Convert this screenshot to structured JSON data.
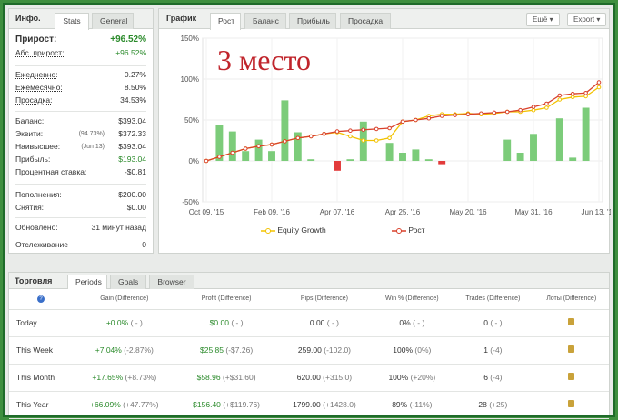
{
  "info": {
    "title": "Инфо.",
    "tabs": [
      "Stats",
      "General"
    ],
    "rows": {
      "gain_label": "Прирост:",
      "gain_value": "+96.52%",
      "abs_gain_label": "Абс. прирост:",
      "abs_gain_value": "+96.52%",
      "daily_label": "Ежедневно:",
      "daily_value": "0.27%",
      "monthly_label": "Ежемесячно:",
      "monthly_value": "8.50%",
      "drawdown_label": "Просадка:",
      "drawdown_value": "34.53%",
      "balance_label": "Баланс:",
      "balance_value": "$393.04",
      "equity_label": "Эквити:",
      "equity_note": "(94.73%)",
      "equity_value": "$372.33",
      "highest_label": "Наивысшее:",
      "highest_note": "(Jun 13)",
      "highest_value": "$393.04",
      "profit_label": "Прибыль:",
      "profit_value": "$193.04",
      "interest_label": "Процентная ставка:",
      "interest_value": "-$0.81",
      "deposits_label": "Пополнения:",
      "deposits_value": "$200.00",
      "withdrawals_label": "Снятия:",
      "withdrawals_value": "$0.00",
      "updated_label": "Обновлено:",
      "updated_value": "31 минут назад",
      "tracking_label": "Отслеживание",
      "tracking_value": "0"
    }
  },
  "chart_panel": {
    "title": "График",
    "tabs": [
      "Рост",
      "Баланс",
      "Прибыль",
      "Просадка"
    ],
    "buttons": [
      "Ещё",
      "Export"
    ],
    "overlay_text": "3 место",
    "legend": [
      "Equity Growth",
      "Рост"
    ]
  },
  "chart_data": {
    "type": "line",
    "title": "",
    "x_tick_labels": [
      "Oct 09, '15",
      "Feb 09, '16",
      "Apr 07, '16",
      "Apr 25, '16",
      "May 20, '16",
      "May 31, '16",
      "Jun 13, '16"
    ],
    "y_tick_labels": [
      "150%",
      "100%",
      "50%",
      "0%",
      "-50%"
    ],
    "ylim": [
      -50,
      150
    ],
    "series": [
      {
        "name": "Equity Growth",
        "color": "#f2c200",
        "values": [
          0,
          5,
          10,
          15,
          18,
          20,
          24,
          28,
          30,
          33,
          35,
          30,
          25,
          25,
          28,
          48,
          50,
          55,
          57,
          57,
          58,
          57,
          58,
          60,
          60,
          62,
          65,
          75,
          78,
          79,
          90
        ]
      },
      {
        "name": "Рост",
        "color": "#d9412b",
        "values": [
          0,
          5,
          10,
          15,
          18,
          20,
          24,
          28,
          30,
          33,
          36,
          37,
          38,
          39,
          40,
          48,
          50,
          52,
          55,
          56,
          57,
          58,
          59,
          60,
          62,
          66,
          70,
          80,
          82,
          83,
          96
        ]
      }
    ],
    "bars": {
      "color_pos": "#7ccc7a",
      "color_neg": "#e23a3a",
      "values": [
        0,
        44,
        36,
        12,
        26,
        12,
        74,
        35,
        2,
        0,
        -12,
        2,
        48,
        0,
        22,
        10,
        14,
        2,
        -4,
        0,
        0,
        0,
        0,
        26,
        10,
        33,
        0,
        52,
        4,
        65,
        0
      ]
    },
    "grid": true
  },
  "trading": {
    "title": "Торговля",
    "tabs": [
      "Periods",
      "Goals",
      "Browser"
    ],
    "help_icon": "question-icon",
    "columns": [
      "Gain (Difference)",
      "Profit (Difference)",
      "Pips (Difference)",
      "Win % (Difference)",
      "Trades (Difference)",
      "Лоты (Difference)"
    ],
    "rows": [
      {
        "period": "Today",
        "gain": "+0.0%",
        "gain_diff": "( - )",
        "profit": "$0.00",
        "profit_diff": "( - )",
        "pips": "0.00",
        "pips_diff": "( - )",
        "win": "0%",
        "win_diff": "( - )",
        "trades": "0",
        "trades_diff": "( - )"
      },
      {
        "period": "This Week",
        "gain": "+7.04%",
        "gain_diff": "(-2.87%)",
        "profit": "$25.85",
        "profit_diff": "(-$7.26)",
        "pips": "259.00",
        "pips_diff": "(-102.0)",
        "win": "100%",
        "win_diff": "(0%)",
        "trades": "1",
        "trades_diff": "(-4)"
      },
      {
        "period": "This Month",
        "gain": "+17.65%",
        "gain_diff": "(+8.73%)",
        "profit": "$58.96",
        "profit_diff": "(+$31.60)",
        "pips": "620.00",
        "pips_diff": "(+315.0)",
        "win": "100%",
        "win_diff": "(+20%)",
        "trades": "6",
        "trades_diff": "(-4)"
      },
      {
        "period": "This Year",
        "gain": "+66.09%",
        "gain_diff": "(+47.77%)",
        "profit": "$156.40",
        "profit_diff": "(+$119.76)",
        "pips": "1799.00",
        "pips_diff": "(+1428.0)",
        "win": "89%",
        "win_diff": "(-11%)",
        "trades": "28",
        "trades_diff": "(+25)"
      }
    ]
  }
}
